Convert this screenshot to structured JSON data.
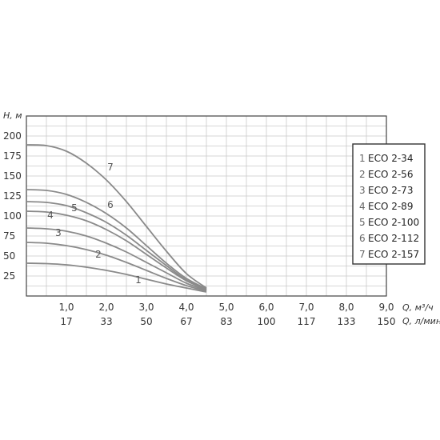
{
  "chart_data": {
    "type": "line",
    "ylabel": "H, м",
    "xlabel": "Q, м³/ч",
    "xlabel2": "Q, л/мин",
    "xlim": [
      0,
      9.0
    ],
    "ylim": [
      0,
      225
    ],
    "grid": true,
    "y_ticks": [
      "25",
      "50",
      "75",
      "100",
      "125",
      "150",
      "175",
      "200"
    ],
    "x_ticks": [
      "1,0",
      "2,0",
      "3,0",
      "4,0",
      "5,0",
      "6,0",
      "7,0",
      "8,0",
      "9,0"
    ],
    "x_ticks2": [
      "17",
      "33",
      "50",
      "67",
      "83",
      "100",
      "117",
      "133",
      "150"
    ],
    "legend_position": "right",
    "series": [
      {
        "num": "1",
        "name": "ECO 2-34",
        "x": [
          0,
          0.5,
          1.0,
          1.5,
          2.0,
          2.5,
          3.0,
          3.5,
          4.0,
          4.5
        ],
        "y": [
          41,
          40.5,
          39,
          36,
          32,
          27,
          21,
          15,
          10,
          5
        ]
      },
      {
        "num": "2",
        "name": "ECO 2-56",
        "x": [
          0,
          0.5,
          1.0,
          1.5,
          2.0,
          2.5,
          3.0,
          3.5,
          4.0,
          4.5
        ],
        "y": [
          67,
          66,
          63,
          58,
          51,
          42,
          32,
          22,
          13,
          6
        ]
      },
      {
        "num": "3",
        "name": "ECO 2-73",
        "x": [
          0,
          0.5,
          1.0,
          1.5,
          2.0,
          2.5,
          3.0,
          3.5,
          4.0,
          4.5
        ],
        "y": [
          85,
          84,
          81,
          75,
          66,
          55,
          42,
          29,
          16,
          7
        ]
      },
      {
        "num": "4",
        "name": "ECO 2-89",
        "x": [
          0,
          0.5,
          1.0,
          1.5,
          2.0,
          2.5,
          3.0,
          3.5,
          4.0,
          4.5
        ],
        "y": [
          106,
          105,
          101,
          94,
          83,
          69,
          52,
          35,
          19,
          8
        ]
      },
      {
        "num": "5",
        "name": "ECO 2-100",
        "x": [
          0,
          0.5,
          1.0,
          1.5,
          2.0,
          2.5,
          3.0,
          3.5,
          4.0,
          4.5
        ],
        "y": [
          118,
          117,
          113,
          104,
          92,
          76,
          57,
          38,
          20,
          8
        ]
      },
      {
        "num": "6",
        "name": "ECO 2-112",
        "x": [
          0,
          0.5,
          1.0,
          1.5,
          2.0,
          2.5,
          3.0,
          3.5,
          4.0,
          4.5
        ],
        "y": [
          133,
          132,
          127,
          117,
          103,
          85,
          63,
          41,
          22,
          9
        ]
      },
      {
        "num": "7",
        "name": "ECO 2-157",
        "x": [
          0,
          0.5,
          1.0,
          1.5,
          2.0,
          2.5,
          3.0,
          3.5,
          4.0,
          4.5
        ],
        "y": [
          189,
          188,
          181,
          166,
          145,
          118,
          87,
          56,
          28,
          10
        ]
      }
    ],
    "curve_labels": [
      {
        "text": "1",
        "x": 2.8,
        "y": 16
      },
      {
        "text": "2",
        "x": 1.8,
        "y": 48
      },
      {
        "text": "3",
        "x": 0.8,
        "y": 75
      },
      {
        "text": "4",
        "x": 0.6,
        "y": 97
      },
      {
        "text": "5",
        "x": 1.2,
        "y": 106
      },
      {
        "text": "6",
        "x": 2.1,
        "y": 110
      },
      {
        "text": "7",
        "x": 2.1,
        "y": 157
      }
    ]
  }
}
